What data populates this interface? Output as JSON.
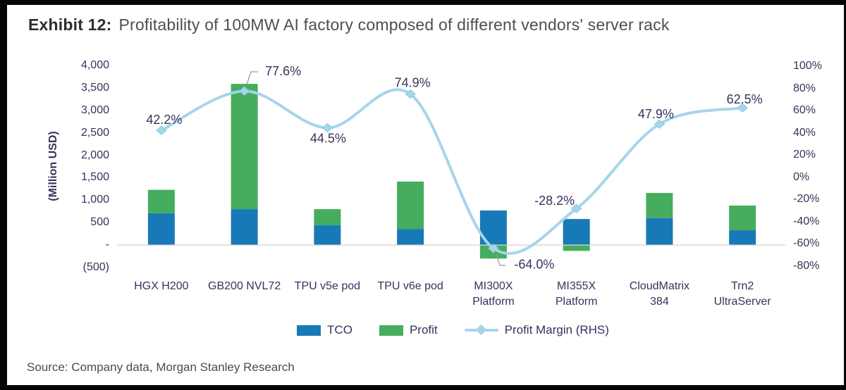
{
  "header": {
    "exhibit_label": "Exhibit 12:",
    "title": "Profitability of 100MW AI factory composed of different vendors' server rack"
  },
  "footer": {
    "source": "Source: Company data, Morgan Stanley Research"
  },
  "chart_data": {
    "type": "bar",
    "subtype": "stacked-bar-with-line-combo",
    "title": "Profitability of 100MW AI factory composed of different vendors' server rack",
    "categories": [
      "HGX H200",
      "GB200 NVL72",
      "TPU v5e pod",
      "TPU v6e pod",
      "MI300X\nPlatform",
      "MI355X\nPlatform",
      "CloudMatrix\n384",
      "Trn2\nUltraServer"
    ],
    "series": [
      {
        "name": "TCO",
        "type": "bar",
        "axis": "left",
        "color": "#1879b8",
        "values": [
          710,
          800,
          440,
          355,
          770,
          580,
          600,
          330
        ]
      },
      {
        "name": "Profit",
        "type": "bar",
        "axis": "left",
        "color": "#45ad5d",
        "values": [
          520,
          2790,
          360,
          1060,
          -300,
          -130,
          560,
          550
        ]
      },
      {
        "name": "Profit Margin (RHS)",
        "type": "line",
        "axis": "right",
        "color": "#a6d5e9",
        "values": [
          42.2,
          77.6,
          44.5,
          74.9,
          -64.0,
          -28.2,
          47.9,
          62.5
        ],
        "labels": [
          "42.2%",
          "77.6%",
          "44.5%",
          "74.9%",
          "-64.0%",
          "-28.2%",
          "47.9%",
          "62.5%"
        ]
      }
    ],
    "left_axis": {
      "label": "(Million USD)",
      "min": -500,
      "max": 4000,
      "tick_step": 500,
      "tick_labels": [
        "4,000",
        "3,500",
        "3,000",
        "2,500",
        "2,000",
        "1,500",
        "1,000",
        "500",
        "-",
        "(500)"
      ]
    },
    "right_axis": {
      "min": -80,
      "max": 100,
      "tick_step": 20,
      "tick_labels": [
        "100%",
        "80%",
        "60%",
        "40%",
        "20%",
        "0%",
        "-20%",
        "-40%",
        "-60%",
        "-80%"
      ]
    },
    "legend": [
      "TCO",
      "Profit",
      "Profit Margin (RHS)"
    ],
    "grid": "zero-baseline-only",
    "gridline_color": "#d4d4d4",
    "text_color": "#37325c"
  }
}
